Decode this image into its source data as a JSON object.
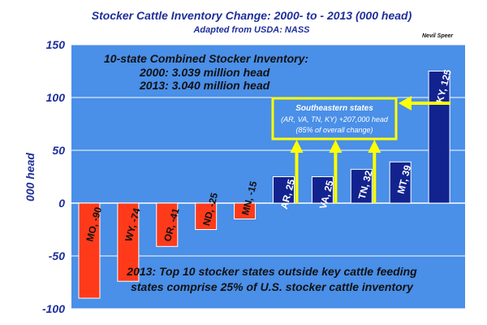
{
  "colors": {
    "plot_bg": "#4a8fe8",
    "negative_bar": "#ff3a1a",
    "positive_bar": "#12238f",
    "highlight": "#ffff00",
    "axis_text": "#1f2f9a"
  },
  "header": {
    "title": "Stocker Cattle Inventory Change: 2000- to - 2013 (000 head)",
    "subtitle": "Adapted from USDA: NASS",
    "author": "Nevil Speer"
  },
  "summary": {
    "line1": "10-state Combined Stocker Inventory:",
    "line2": "2000:  3.039 million head",
    "line3": "2013:  3.040 million head"
  },
  "callout": {
    "line1": "Southeastern states",
    "line2": "(AR, VA, TN, KY) +207,000 head",
    "line3": "(85% of overall change)"
  },
  "footnote": {
    "line1": "2013:  Top 10 stocker states outside key cattle feeding",
    "line2": "states comprise 25% of U.S. stocker cattle inventory"
  },
  "chart_data": {
    "type": "bar",
    "title": "Stocker Cattle Inventory Change: 2000- to - 2013 (000 head)",
    "subtitle": "Adapted from USDA: NASS",
    "ylabel": "000 head",
    "xlabel": "",
    "ylim": [
      -100,
      150
    ],
    "yticks": [
      -100,
      -50,
      0,
      50,
      100,
      150
    ],
    "grid": true,
    "bar_labels": [
      "MO, -90",
      "WY, -74",
      "OR, -41",
      "ND, -25",
      "MN, -15",
      "AR, 25",
      "VA, 25",
      "TN, 32",
      "MT, 39",
      "KY, 125"
    ],
    "categories": [
      "MO",
      "WY",
      "OR",
      "ND",
      "MN",
      "AR",
      "VA",
      "TN",
      "MT",
      "KY"
    ],
    "values": [
      -90,
      -74,
      -41,
      -25,
      -15,
      25,
      25,
      32,
      39,
      125
    ]
  }
}
